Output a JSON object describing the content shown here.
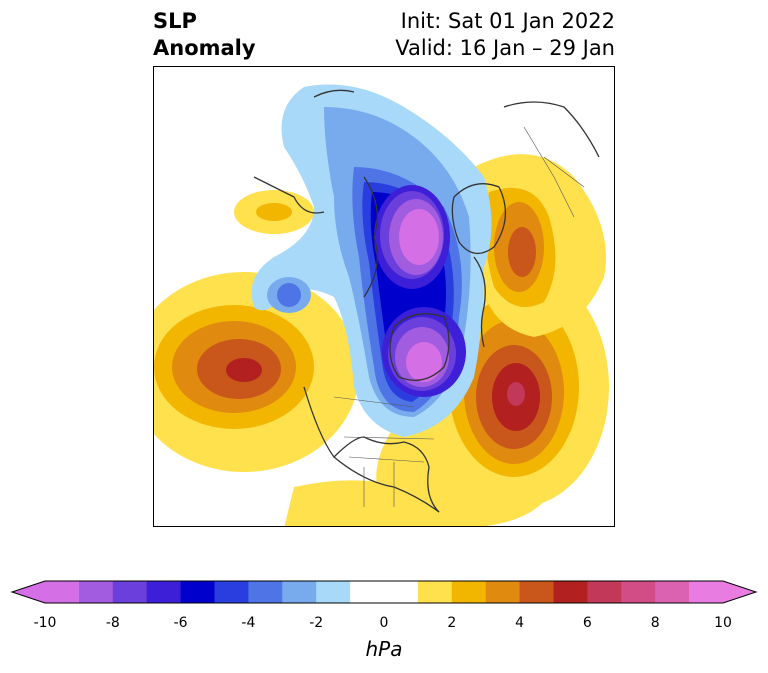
{
  "header": {
    "variable_line1": "SLP",
    "variable_line2": "Anomaly",
    "init_text": "Init: Sat 01 Jan 2022",
    "valid_text": "Valid: 16 Jan – 29 Jan"
  },
  "colorbar": {
    "unit": "hPa",
    "tick_labels": [
      "-10",
      "-8",
      "-6",
      "-4",
      "-2",
      "0",
      "2",
      "4",
      "6",
      "8",
      "10"
    ],
    "range": [
      -10,
      10
    ],
    "interval": 1,
    "colors": [
      "#d56fe6",
      "#a25ce0",
      "#6b3fdc",
      "#3c1fd6",
      "#0000cc",
      "#2a3ee0",
      "#4f74e6",
      "#78abee",
      "#a9d9f8",
      "#ffffff",
      "#ffffff",
      "#ffe14d",
      "#f2b600",
      "#e08a10",
      "#c9561a",
      "#b22020",
      "#c13858",
      "#d24c86",
      "#db62b0",
      "#e87ce0"
    ]
  },
  "map": {
    "projection": "north-polar-stereographic",
    "field": "sea level pressure anomaly",
    "features": [
      {
        "name": "negative anomaly centre over northern Canada / Hudson Bay",
        "approx_value_hPa": -10
      },
      {
        "name": "negative anomaly centre over Greenland Sea / Arctic",
        "approx_value_hPa": -10
      },
      {
        "name": "positive anomaly centre over North Pacific",
        "approx_value_hPa": 6
      },
      {
        "name": "positive anomaly centre over North Atlantic",
        "approx_value_hPa": 8
      },
      {
        "name": "positive anomaly over Scandinavia / Barents",
        "approx_value_hPa": 4
      }
    ]
  }
}
